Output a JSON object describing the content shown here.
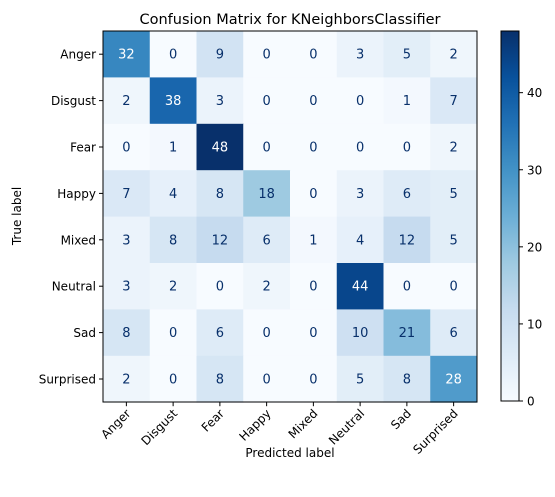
{
  "chart_data": {
    "type": "heatmap",
    "title": "Confusion Matrix for KNeighborsClassifier",
    "xlabel": "Predicted label",
    "ylabel": "True label",
    "colormap": "Blues",
    "colormap_stops": [
      "#f7fbff",
      "#deebf7",
      "#c6dbef",
      "#9ecae1",
      "#6baed6",
      "#4292c6",
      "#2171b5",
      "#08519c",
      "#08306b"
    ],
    "text_color_dark": "#08306b",
    "text_color_light": "#ffffff",
    "x_categories": [
      "Anger",
      "Disgust",
      "Fear",
      "Happy",
      "Mixed",
      "Neutral",
      "Sad",
      "Surprised"
    ],
    "y_categories": [
      "Anger",
      "Disgust",
      "Fear",
      "Happy",
      "Mixed",
      "Neutral",
      "Sad",
      "Surprised"
    ],
    "values": [
      [
        32,
        0,
        9,
        0,
        0,
        3,
        5,
        2
      ],
      [
        2,
        38,
        3,
        0,
        0,
        0,
        1,
        7
      ],
      [
        0,
        1,
        48,
        0,
        0,
        0,
        0,
        2
      ],
      [
        7,
        4,
        8,
        18,
        0,
        3,
        6,
        5
      ],
      [
        3,
        8,
        12,
        6,
        1,
        4,
        12,
        5
      ],
      [
        3,
        2,
        0,
        2,
        0,
        44,
        0,
        0
      ],
      [
        8,
        0,
        6,
        0,
        0,
        10,
        21,
        6
      ],
      [
        2,
        0,
        8,
        0,
        0,
        5,
        8,
        28
      ]
    ],
    "value_range": [
      0,
      48
    ],
    "colorbar_ticks": [
      0,
      10,
      20,
      30,
      40
    ]
  }
}
